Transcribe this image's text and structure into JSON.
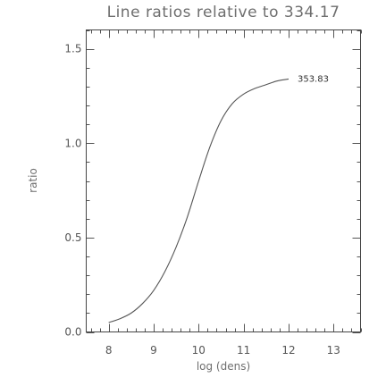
{
  "chart_data": {
    "type": "line",
    "title": "Line ratios relative to 334.17",
    "xlabel": "log (dens)",
    "ylabel": "ratio",
    "xlim": [
      7.5,
      13.6
    ],
    "ylim": [
      0.0,
      1.6
    ],
    "x_ticks": [
      8,
      9,
      10,
      11,
      12,
      13
    ],
    "x_tick_labels": [
      "8",
      "9",
      "10",
      "11",
      "12",
      "13"
    ],
    "x_minor_step": 0.2,
    "y_ticks": [
      0.0,
      0.5,
      1.0,
      1.5
    ],
    "y_tick_labels": [
      "0.0",
      "0.5",
      "1.0",
      "1.5"
    ],
    "y_minor_step": 0.1,
    "grid": false,
    "series": [
      {
        "name": "353.83",
        "x": [
          8.0,
          8.25,
          8.5,
          8.75,
          9.0,
          9.25,
          9.5,
          9.75,
          10.0,
          10.25,
          10.5,
          10.75,
          11.0,
          11.25,
          11.5,
          11.75,
          12.0
        ],
        "y": [
          0.05,
          0.07,
          0.1,
          0.15,
          0.22,
          0.32,
          0.45,
          0.61,
          0.8,
          0.98,
          1.12,
          1.21,
          1.26,
          1.29,
          1.31,
          1.33,
          1.34
        ]
      }
    ],
    "annotations": [
      {
        "text": "353.83",
        "x": 12.0,
        "y": 1.34
      }
    ]
  }
}
